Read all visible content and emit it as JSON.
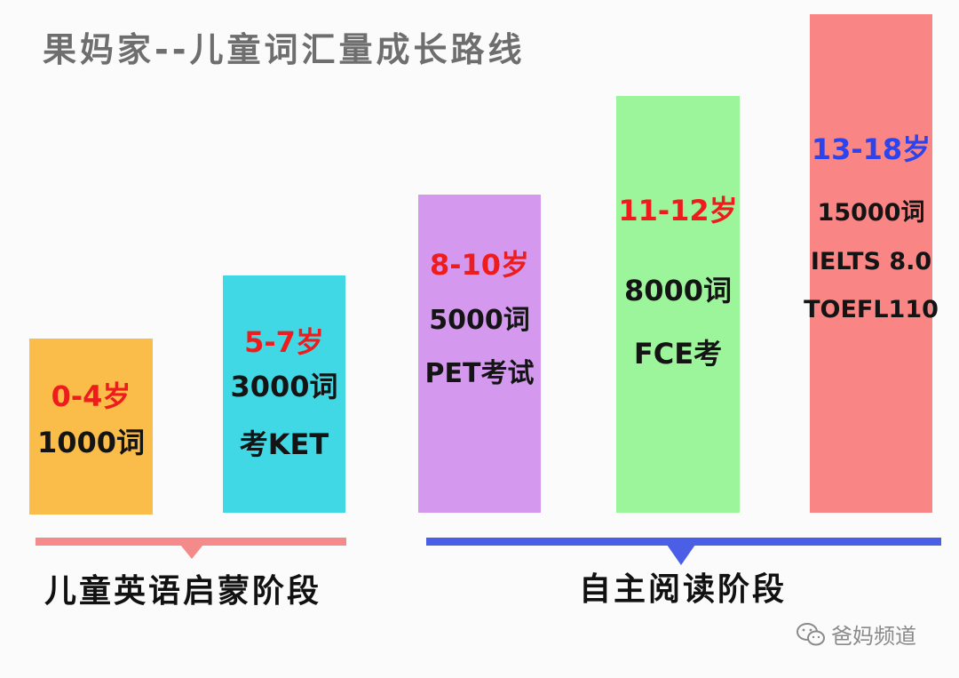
{
  "title": "果妈家--儿童词汇量成长路线",
  "stages": [
    {
      "age": "0-4岁",
      "lines": [
        "1000词"
      ]
    },
    {
      "age": "5-7岁",
      "lines": [
        "3000词",
        "考KET"
      ]
    },
    {
      "age": "8-10岁",
      "lines": [
        "5000词",
        "PET考试"
      ]
    },
    {
      "age": "11-12岁",
      "lines": [
        "8000词",
        "FCE考"
      ]
    },
    {
      "age": "13-18岁",
      "lines": [
        "15000词",
        "IELTS 8.0",
        "TOEFL110"
      ]
    }
  ],
  "phases": [
    {
      "label": "儿童英语启蒙阶段",
      "color": "#f58a8a"
    },
    {
      "label": "自主阅读阶段",
      "color": "#4a5fe6"
    }
  ],
  "colors": {
    "bars": [
      "#fbbd49",
      "#40d8e4",
      "#d499ef",
      "#9cf59a",
      "#f98584"
    ],
    "age_red": "#ee1c1c",
    "age_blue": "#2a44ef"
  },
  "watermark": {
    "icon": "wechat-icon",
    "text": "爸妈频道"
  }
}
